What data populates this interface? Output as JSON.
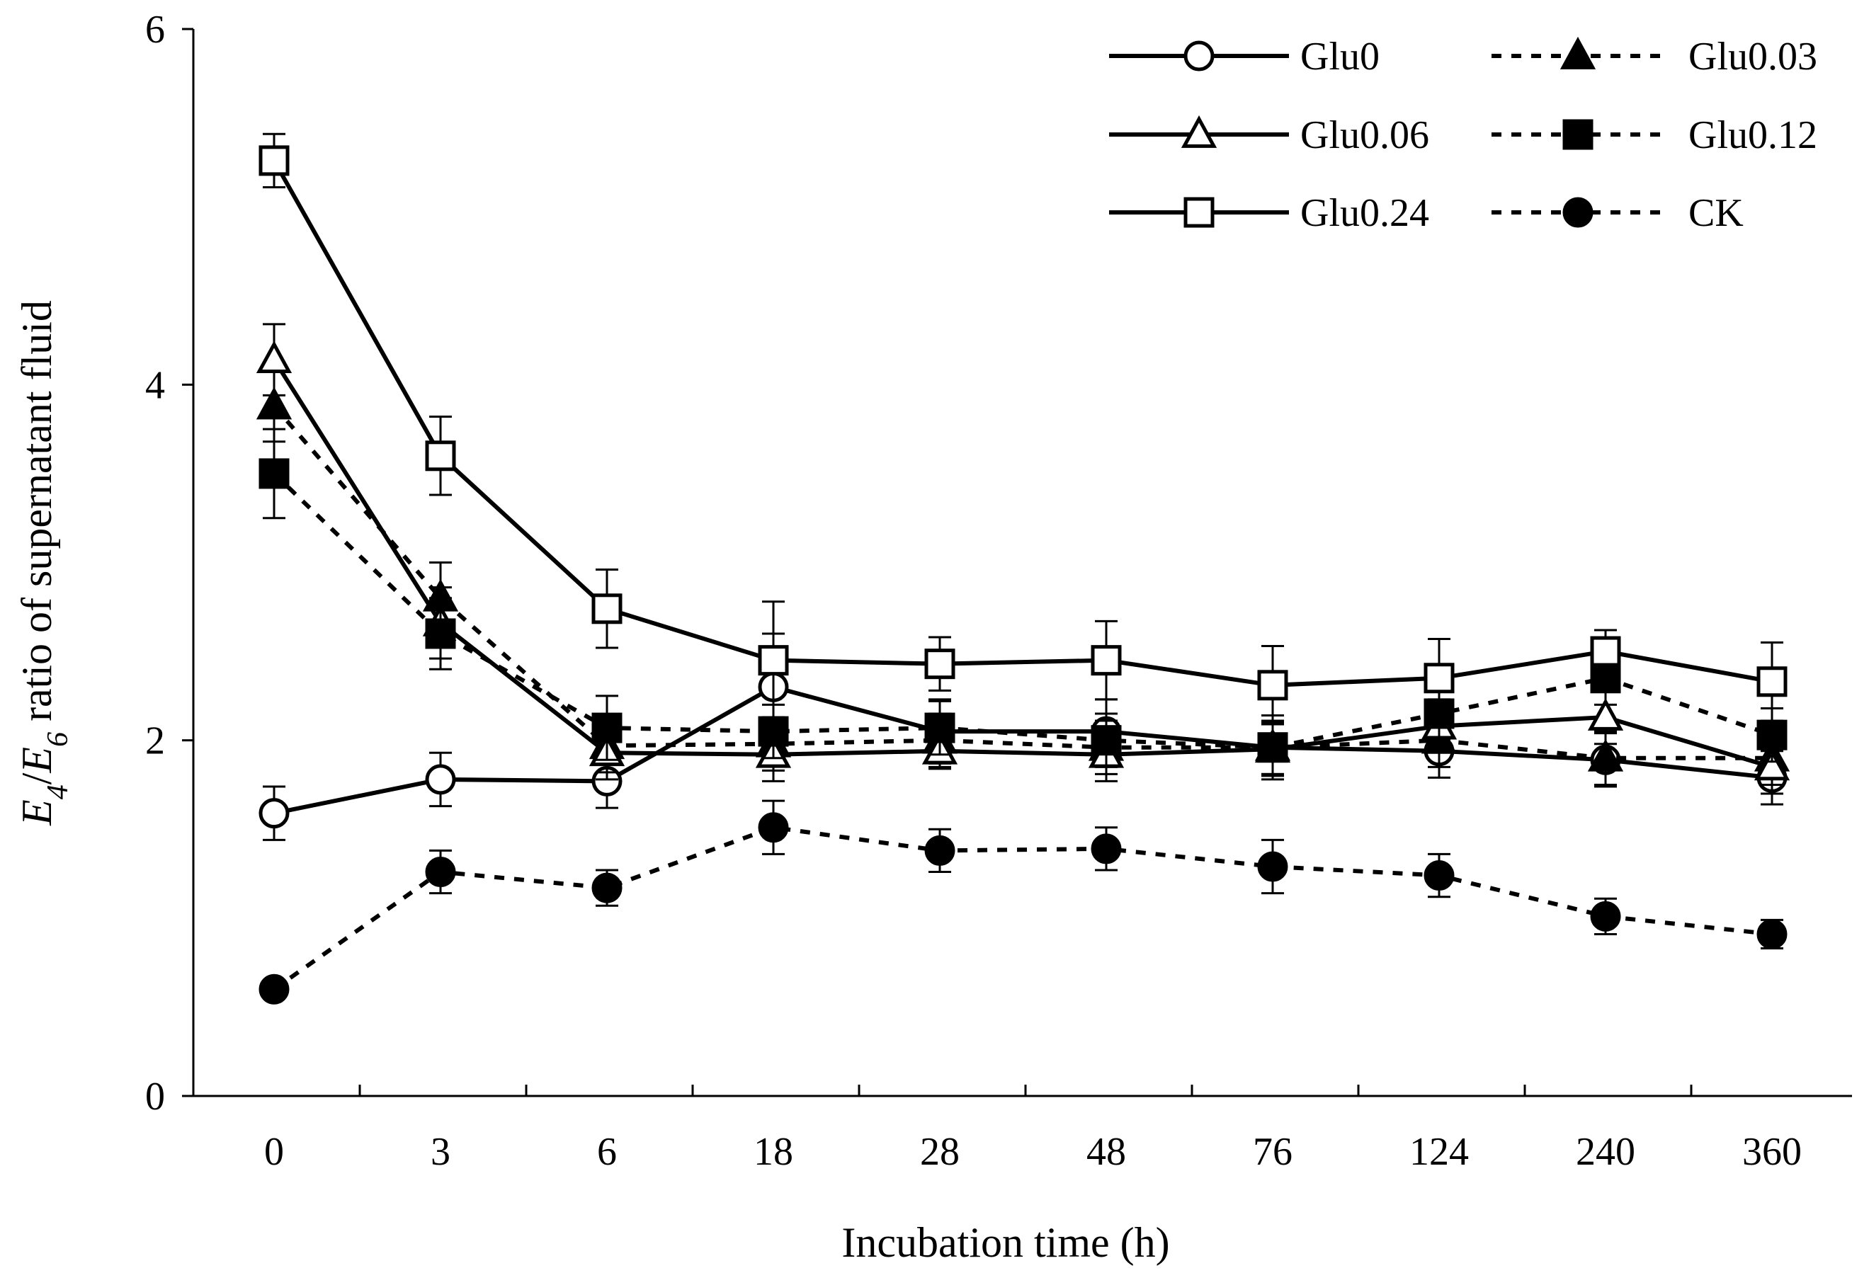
{
  "chart_data": {
    "type": "line",
    "title": "",
    "xlabel": "Incubation time (h)",
    "ylabel_parts": [
      "E",
      "4",
      "/",
      "E",
      "6",
      " ratio of supernatant fluid"
    ],
    "categories": [
      "0",
      "3",
      "6",
      "18",
      "28",
      "48",
      "76",
      "124",
      "240",
      "360"
    ],
    "ylim": [
      0,
      6
    ],
    "yticks": [
      "0",
      "2",
      "4",
      "6"
    ],
    "legend_position": "top-right",
    "series": [
      {
        "name": "Glu0",
        "marker": "circle-open",
        "line": "solid",
        "values": [
          1.59,
          1.78,
          1.77,
          2.3,
          2.05,
          2.05,
          1.96,
          1.94,
          1.89,
          1.79
        ],
        "errors": [
          0.15,
          0.15,
          0.15,
          0.3,
          0.18,
          0.18,
          0.18,
          0.15,
          0.15,
          0.15
        ]
      },
      {
        "name": "Glu0.03",
        "marker": "triangle-filled",
        "line": "dashed",
        "values": [
          3.88,
          2.8,
          1.97,
          1.98,
          2.0,
          1.96,
          1.96,
          2.0,
          1.9,
          1.9
        ],
        "errors": [
          0.2,
          0.2,
          0.15,
          0.15,
          0.15,
          0.15,
          0.15,
          0.15,
          0.15,
          0.15
        ]
      },
      {
        "name": "Glu0.06",
        "marker": "triangle-open",
        "line": "solid",
        "values": [
          4.14,
          2.66,
          1.93,
          1.92,
          1.94,
          1.92,
          1.95,
          2.08,
          2.13,
          1.85
        ],
        "errors": [
          0.2,
          0.2,
          0.15,
          0.15,
          0.1,
          0.15,
          0.15,
          0.15,
          0.15,
          0.15
        ]
      },
      {
        "name": "Glu0.12",
        "marker": "square-filled",
        "line": "dashed",
        "values": [
          3.5,
          2.6,
          2.07,
          2.05,
          2.07,
          2.0,
          1.96,
          2.15,
          2.35,
          2.03
        ],
        "errors": [
          0.25,
          0.2,
          0.18,
          0.15,
          0.15,
          0.15,
          0.15,
          0.15,
          0.15,
          0.15
        ]
      },
      {
        "name": "Glu0.24",
        "marker": "square-open",
        "line": "solid",
        "values": [
          5.26,
          3.6,
          2.74,
          2.45,
          2.43,
          2.45,
          2.31,
          2.35,
          2.5,
          2.33
        ],
        "errors": [
          0.15,
          0.22,
          0.22,
          0.33,
          0.15,
          0.22,
          0.22,
          0.22,
          0.12,
          0.22
        ]
      },
      {
        "name": "CK",
        "marker": "circle-filled",
        "line": "dashed",
        "values": [
          0.6,
          1.26,
          1.17,
          1.51,
          1.38,
          1.39,
          1.29,
          1.24,
          1.01,
          0.91
        ],
        "errors": [
          0.05,
          0.12,
          0.1,
          0.15,
          0.12,
          0.12,
          0.15,
          0.12,
          0.1,
          0.08
        ]
      }
    ],
    "legend_order": [
      "Glu0",
      "Glu0.03",
      "Glu0.06",
      "Glu0.12",
      "Glu0.24",
      "CK"
    ]
  }
}
